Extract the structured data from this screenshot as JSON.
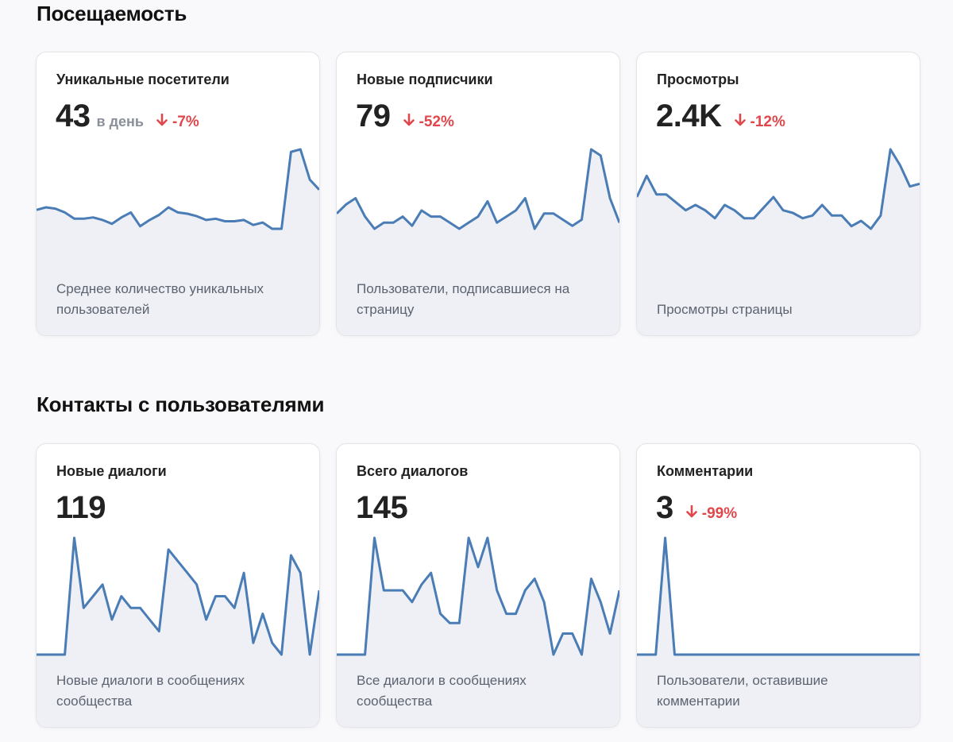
{
  "sections": [
    {
      "title": "Посещаемость",
      "cards": [
        {
          "label": "Уникальные посетители",
          "value": "43",
          "unit": "в день",
          "change": "-7%",
          "change_direction": "down",
          "description": "Среднее количество уникальных пользователей",
          "series": [
            25,
            26,
            25.5,
            24,
            21.5,
            21.5,
            22,
            21,
            19.5,
            22,
            24,
            18.5,
            21,
            23,
            26,
            24,
            23.5,
            22.5,
            21,
            21.5,
            20.5,
            20.5,
            21,
            19,
            20,
            17.5,
            17.5,
            48,
            49,
            37,
            33
          ]
        },
        {
          "label": "Новые подписчики",
          "value": "79",
          "unit": "",
          "change": "-52%",
          "change_direction": "down",
          "description": "Пользователи, подписавшиеся на страницу",
          "series": [
            27,
            30,
            32,
            26,
            22,
            24,
            24,
            26,
            23,
            28,
            26,
            26,
            24,
            22,
            24,
            26,
            31,
            24,
            26,
            28,
            32,
            22,
            27,
            27,
            25,
            23,
            25,
            48,
            46,
            32,
            24
          ]
        },
        {
          "label": "Просмотры",
          "value": "2.4K",
          "unit": "",
          "change": "-12%",
          "change_direction": "down",
          "description": "Просмотры страницы",
          "series": [
            31,
            35,
            31.5,
            31.5,
            30,
            28.5,
            29.5,
            28.5,
            27,
            29.5,
            28.5,
            27,
            27,
            29,
            31,
            28.5,
            28,
            27,
            27.5,
            29.5,
            27.5,
            27.5,
            25.5,
            26.5,
            25,
            27.5,
            40,
            37,
            33,
            33.5
          ]
        }
      ]
    },
    {
      "title": "Контакты с пользователями",
      "cards": [
        {
          "label": "Новые диалоги",
          "value": "119",
          "unit": "",
          "change": "",
          "change_direction": "",
          "description": "Новые диалоги в сообщениях сообщества",
          "series": [
            0,
            0,
            0,
            0,
            10,
            4,
            5,
            6,
            3,
            5,
            4,
            4,
            3,
            2,
            9,
            8,
            7,
            6,
            3,
            5,
            5,
            4,
            7,
            1,
            3.5,
            1,
            0,
            8.5,
            7,
            0,
            5.5
          ]
        },
        {
          "label": "Всего диалогов",
          "value": "145",
          "unit": "",
          "change": "",
          "change_direction": "",
          "description": "Все диалоги в сообщениях сообщества",
          "series": [
            0,
            0,
            0,
            0,
            10,
            5.5,
            5.5,
            5.5,
            4.5,
            6,
            7,
            3.5,
            2.7,
            2.7,
            10,
            7.5,
            10,
            5.5,
            3.5,
            3.5,
            5.5,
            6.5,
            4.5,
            0,
            1.8,
            1.8,
            0,
            6.5,
            4.5,
            1.8,
            5.5
          ]
        },
        {
          "label": "Комментарии",
          "value": "3",
          "unit": "",
          "change": "-99%",
          "change_direction": "down",
          "description": "Пользователи, оставившие комментарии",
          "series": [
            0,
            0,
            0,
            10,
            0,
            0,
            0,
            0,
            0,
            0,
            0,
            0,
            0,
            0,
            0,
            0,
            0,
            0,
            0,
            0,
            0,
            0,
            0,
            0,
            0,
            0,
            0,
            0,
            0,
            0,
            0
          ]
        }
      ]
    }
  ],
  "colors": {
    "line": "#4a7cb5",
    "area": "#eef0f5",
    "negative": "#e0474c"
  }
}
